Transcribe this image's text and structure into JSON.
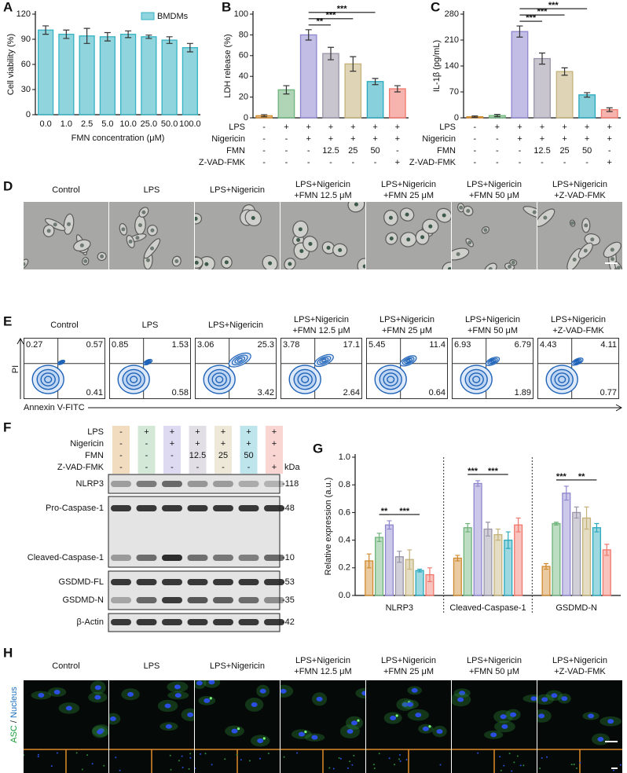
{
  "chart_data": [
    {
      "type": "bar",
      "letter": "A",
      "ylabel": "Cell viability (%)",
      "xlabel": "FMN concentration (μM)",
      "legend": "BMDMs",
      "categories": [
        "0.0",
        "1.0",
        "2.5",
        "5.0",
        "10.0",
        "25.0",
        "50.0",
        "100.0"
      ],
      "values": [
        101,
        96,
        94,
        93,
        96,
        93,
        89,
        80
      ],
      "errors": [
        5,
        5,
        9,
        5,
        4,
        2,
        4,
        5
      ],
      "color": "#35b3c3",
      "ylim": [
        0,
        120
      ],
      "yticks": [
        0,
        30,
        60,
        90,
        120
      ]
    },
    {
      "type": "bar",
      "letter": "B",
      "ylabel": "LDH release (%)",
      "values": [
        2,
        27,
        80,
        62,
        52,
        35,
        28
      ],
      "errors": [
        1,
        4,
        5,
        6,
        7,
        3,
        3
      ],
      "colors": [
        "#d08a2e",
        "#6db37a",
        "#8e86cf",
        "#9a95a8",
        "#c4b27a",
        "#27a9bd",
        "#f0776c"
      ],
      "ylim": [
        0,
        100
      ],
      "yticks": [
        0,
        20,
        40,
        60,
        80,
        100
      ],
      "significance": [
        {
          "label": "**",
          "groups": [
            2,
            3
          ]
        },
        {
          "label": "***",
          "groups": [
            2,
            4
          ]
        },
        {
          "label": "***",
          "groups": [
            2,
            5
          ]
        }
      ]
    },
    {
      "type": "bar",
      "letter": "C",
      "ylabel": "IL-1β (pg/mL)",
      "values": [
        3,
        6,
        233,
        160,
        125,
        62,
        22
      ],
      "errors": [
        2,
        3,
        15,
        15,
        10,
        6,
        5
      ],
      "colors": [
        "#d08a2e",
        "#6db37a",
        "#8e86cf",
        "#9a95a8",
        "#c4b27a",
        "#27a9bd",
        "#f0776c"
      ],
      "ylim": [
        0,
        280
      ],
      "yticks": [
        0,
        70,
        140,
        210,
        280
      ],
      "significance": [
        {
          "label": "***",
          "groups": [
            2,
            3
          ]
        },
        {
          "label": "***",
          "groups": [
            2,
            4
          ]
        },
        {
          "label": "***",
          "groups": [
            2,
            5
          ]
        }
      ]
    },
    {
      "type": "grouped_bar",
      "letter": "G",
      "ylabel": "Relative expression (a.u.)",
      "categories": [
        "NLRP3",
        "Cleaved-Caspase-1",
        "GSDMD-N"
      ],
      "series": [
        {
          "color": "#d08a2e",
          "values": [
            0.25,
            0.27,
            0.21
          ],
          "errors": [
            0.05,
            0.02,
            0.02
          ]
        },
        {
          "color": "#6db37a",
          "values": [
            0.42,
            0.49,
            0.52
          ],
          "errors": [
            0.03,
            0.03,
            0.01
          ]
        },
        {
          "color": "#8e86cf",
          "values": [
            0.51,
            0.81,
            0.74
          ],
          "errors": [
            0.03,
            0.02,
            0.05
          ]
        },
        {
          "color": "#9a95a8",
          "values": [
            0.28,
            0.48,
            0.6
          ],
          "errors": [
            0.04,
            0.05,
            0.04
          ]
        },
        {
          "color": "#c4b27a",
          "values": [
            0.26,
            0.44,
            0.56
          ],
          "errors": [
            0.07,
            0.04,
            0.08
          ]
        },
        {
          "color": "#27a9bd",
          "values": [
            0.18,
            0.4,
            0.49
          ],
          "errors": [
            0.01,
            0.06,
            0.03
          ]
        },
        {
          "color": "#f0776c",
          "values": [
            0.15,
            0.51,
            0.33
          ],
          "errors": [
            0.05,
            0.05,
            0.04
          ]
        }
      ],
      "ylim": [
        0,
        1
      ],
      "yticks": [
        {
          "value": 0,
          "label": "0.0"
        },
        0.2,
        0.4,
        0.6,
        0.8,
        {
          "value": 1,
          "label": "1.0"
        }
      ],
      "significance": [
        {
          "category": 0,
          "label": "**",
          "groups": [
            1,
            2
          ]
        },
        {
          "category": 0,
          "label": "***",
          "groups": [
            2,
            5
          ]
        },
        {
          "category": 1,
          "label": "***",
          "groups": [
            1,
            2
          ]
        },
        {
          "category": 1,
          "label": "***",
          "groups": [
            2,
            5
          ]
        },
        {
          "category": 2,
          "label": "***",
          "groups": [
            1,
            2
          ]
        },
        {
          "category": 2,
          "label": "**",
          "groups": [
            2,
            5
          ]
        }
      ]
    }
  ],
  "conditions": {
    "rows": [
      {
        "label": "LPS",
        "cells": [
          "-",
          "+",
          "+",
          "+",
          "+",
          "+",
          "+"
        ]
      },
      {
        "label": "Nigericin",
        "cells": [
          "-",
          "-",
          "+",
          "+",
          "+",
          "+",
          "+"
        ]
      },
      {
        "label": "FMN",
        "cells": [
          "-",
          "-",
          "-",
          "12.5",
          "25",
          "50",
          "-"
        ]
      },
      {
        "label": "Z-VAD-FMK",
        "cells": [
          "-",
          "-",
          "-",
          "-",
          "-",
          "-",
          "+"
        ]
      }
    ]
  },
  "image_labels": [
    [
      "Control"
    ],
    [
      "LPS"
    ],
    [
      "LPS+Nigericin"
    ],
    [
      "LPS+Nigericin",
      "+FMN 12.5 μM"
    ],
    [
      "LPS+Nigericin",
      "+FMN 25 μM"
    ],
    [
      "LPS+Nigericin",
      "+FMN 50 μM"
    ],
    [
      "LPS+Nigericin",
      "+Z-VAD-FMK"
    ]
  ],
  "panel_d": {
    "letter": "D"
  },
  "panel_e": {
    "letter": "E",
    "x_label": "Annexin V-FITC",
    "y_label": "PI",
    "quadrants": [
      {
        "ul": 0.27,
        "ur": 0.57,
        "lr": 0.41
      },
      {
        "ul": 0.85,
        "ur": 1.53,
        "lr": 0.58
      },
      {
        "ul": 3.06,
        "ur": 25.3,
        "lr": 3.42
      },
      {
        "ul": 3.78,
        "ur": 17.1,
        "lr": 2.64
      },
      {
        "ul": 5.45,
        "ur": 11.4,
        "lr": 0.64
      },
      {
        "ul": 6.93,
        "ur": 6.79,
        "lr": 1.89
      },
      {
        "ul": 4.43,
        "ur": 4.11,
        "lr": 0.77
      }
    ]
  },
  "panel_f": {
    "letter": "F",
    "kda_unit": "kDa",
    "colors": [
      "#d08a2e",
      "#6db37a",
      "#8e86cf",
      "#9a95a8",
      "#c4b27a",
      "#27a9bd",
      "#f0776c"
    ],
    "blots": [
      {
        "labels": [
          "NLRP3"
        ],
        "kda": [
          "-118"
        ]
      },
      {
        "labels": [
          "Pro-Caspase-1",
          "Cleaved-Caspase-1"
        ],
        "kda": [
          "-48",
          "-10"
        ]
      },
      {
        "labels": [
          "GSDMD-FL",
          "GSDMD-N"
        ],
        "kda": [
          "-53",
          "-35"
        ]
      },
      {
        "labels": [
          "β-Actin"
        ],
        "kda": [
          "-42"
        ]
      }
    ]
  },
  "panel_h": {
    "letter": "H",
    "stain_labels": [
      "ASC",
      "/",
      "Nucleus"
    ],
    "stain_colors": [
      "#1a9a3a",
      "#222222",
      "#1a6fc0"
    ]
  }
}
